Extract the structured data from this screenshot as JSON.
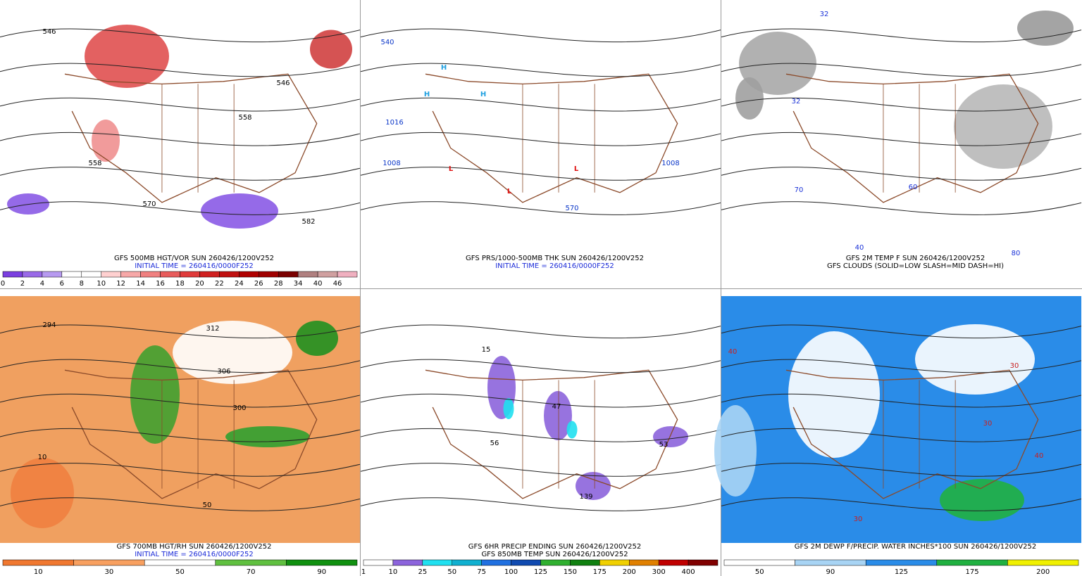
{
  "panels": [
    {
      "title": "GFS 500MB HGT/VOR SUN 260426/1200V252",
      "subtitle": "INITIAL TIME = 260416/0000F252",
      "scale": {
        "labels": [
          0,
          2,
          4,
          6,
          8,
          10,
          12,
          14,
          16,
          18,
          20,
          22,
          24,
          26,
          28,
          34,
          40,
          46
        ],
        "colors": [
          "#7b3fe0",
          "#9a6ae8",
          "#b79af0",
          "#ffffff",
          "#ffffff",
          "#ffd0d0",
          "#f7a8a8",
          "#f08080",
          "#e85c5c",
          "#e03a3a",
          "#d02020",
          "#c01010",
          "#b00000",
          "#a00000",
          "#7a0000",
          "#b08080",
          "#d0a0a0",
          "#f0b0c0"
        ]
      },
      "labels": [
        "546",
        "558",
        "570",
        "582",
        "558",
        "546"
      ]
    },
    {
      "title": "GFS PRS/1000-500MB THK SUN 260426/1200V252",
      "subtitle": "INITIAL TIME = 260416/0000F252",
      "labels": [
        "H",
        "H",
        "H",
        "L",
        "L",
        "L",
        "1016",
        "1008",
        "1008",
        "540",
        "570"
      ]
    },
    {
      "title": "GFS 2M TEMP F SUN 260426/1200V252",
      "subtitle": "GFS CLOUDS (SOLID=LOW SLASH=MID DASH=HI)",
      "labels": [
        "32",
        "32",
        "70",
        "80",
        "60",
        "40"
      ]
    },
    {
      "title": "GFS 700MB HGT/RH SUN 260426/1200V252",
      "subtitle": "INITIAL TIME = 260416/0000F252",
      "scale": {
        "labels": [
          10,
          30,
          50,
          70,
          90
        ],
        "colors": [
          "#f07830",
          "#f8a060",
          "#ffffff",
          "#60c040",
          "#109010"
        ]
      },
      "labels": [
        "294",
        "312",
        "306",
        "300",
        "50",
        "10"
      ]
    },
    {
      "title": "GFS 6HR PRECIP ENDING SUN 260426/1200V252",
      "subtitle": "GFS 850MB TEMP SUN 260426/1200V252",
      "scale": {
        "labels": [
          1,
          10,
          25,
          50,
          75,
          100,
          125,
          150,
          175,
          200,
          300,
          400
        ],
        "colors": [
          "#ffffff",
          "#8c64dc",
          "#20e0f0",
          "#10b0d0",
          "#2070e0",
          "#104ab0",
          "#30b030",
          "#108010",
          "#f0d000",
          "#e08000",
          "#c00000",
          "#800000"
        ]
      },
      "labels": [
        "139",
        "47",
        "53",
        "56",
        "15"
      ]
    },
    {
      "title": "GFS 2M DEWP F/PRECIP. WATER INCHES*100 SUN 260426/1200V252",
      "scale": {
        "labels": [
          50,
          90,
          125,
          175,
          200
        ],
        "colors": [
          "#ffffff",
          "#a8d4f4",
          "#2a8ce8",
          "#20b040",
          "#f0f000"
        ]
      },
      "labels": [
        "40",
        "30",
        "30",
        "30",
        "40"
      ]
    }
  ]
}
